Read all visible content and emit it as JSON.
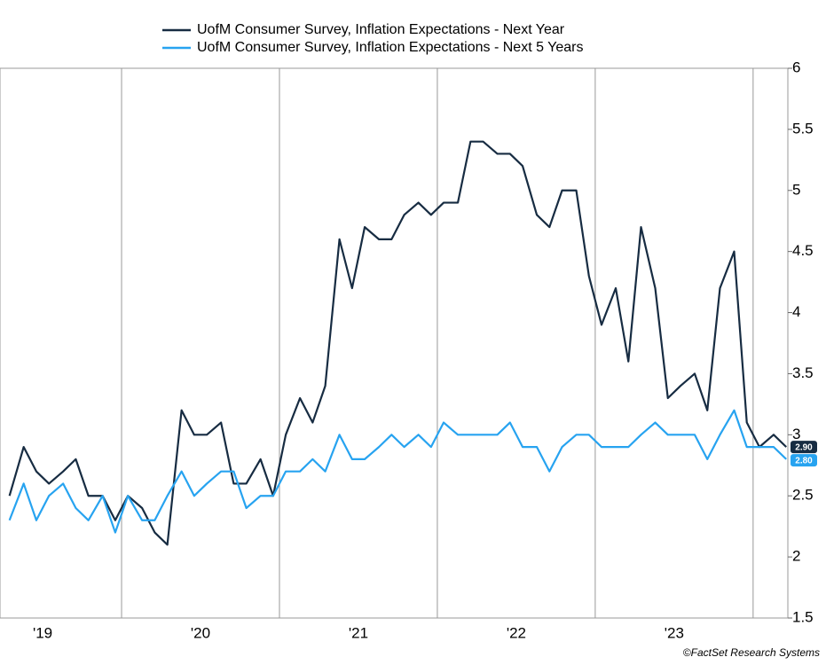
{
  "chart_data": {
    "type": "line",
    "x": [
      2019.29,
      2019.38,
      2019.46,
      2019.54,
      2019.63,
      2019.71,
      2019.79,
      2019.88,
      2019.96,
      2020.04,
      2020.13,
      2020.21,
      2020.29,
      2020.38,
      2020.46,
      2020.54,
      2020.63,
      2020.71,
      2020.79,
      2020.88,
      2020.96,
      2021.04,
      2021.13,
      2021.21,
      2021.29,
      2021.38,
      2021.46,
      2021.54,
      2021.63,
      2021.71,
      2021.79,
      2021.88,
      2021.96,
      2022.04,
      2022.13,
      2022.21,
      2022.29,
      2022.38,
      2022.46,
      2022.54,
      2022.63,
      2022.71,
      2022.79,
      2022.88,
      2022.96,
      2023.04,
      2023.13,
      2023.21,
      2023.29,
      2023.38,
      2023.46,
      2023.54,
      2023.63,
      2023.71,
      2023.79,
      2023.88,
      2023.96,
      2024.04,
      2024.13,
      2024.21
    ],
    "series": [
      {
        "name": "UofM Consumer Survey, Inflation Expectations - Next Year",
        "color": "#172c42",
        "last_label": "2.90",
        "values": [
          2.5,
          2.9,
          2.7,
          2.6,
          2.7,
          2.8,
          2.5,
          2.5,
          2.3,
          2.5,
          2.4,
          2.2,
          2.1,
          3.2,
          3.0,
          3.0,
          3.1,
          2.6,
          2.6,
          2.8,
          2.5,
          3.0,
          3.3,
          3.1,
          3.4,
          4.6,
          4.2,
          4.7,
          4.6,
          4.6,
          4.8,
          4.9,
          4.8,
          4.9,
          4.9,
          5.4,
          5.4,
          5.3,
          5.3,
          5.2,
          4.8,
          4.7,
          5.0,
          5.0,
          4.3,
          3.9,
          4.2,
          3.6,
          4.7,
          4.2,
          3.3,
          3.4,
          3.5,
          3.2,
          4.2,
          4.5,
          3.1,
          2.9,
          3.0,
          2.9
        ]
      },
      {
        "name": "UofM Consumer Survey, Inflation Expectations - Next 5 Years",
        "color": "#27a3f0",
        "last_label": "2.80",
        "values": [
          2.3,
          2.6,
          2.3,
          2.5,
          2.6,
          2.4,
          2.3,
          2.5,
          2.2,
          2.5,
          2.3,
          2.3,
          2.5,
          2.7,
          2.5,
          2.6,
          2.7,
          2.7,
          2.4,
          2.5,
          2.5,
          2.7,
          2.7,
          2.8,
          2.7,
          3.0,
          2.8,
          2.8,
          2.9,
          3.0,
          2.9,
          3.0,
          2.9,
          3.1,
          3.0,
          3.0,
          3.0,
          3.0,
          3.1,
          2.9,
          2.9,
          2.7,
          2.9,
          3.0,
          3.0,
          2.9,
          2.9,
          2.9,
          3.0,
          3.1,
          3.0,
          3.0,
          3.0,
          2.8,
          3.0,
          3.2,
          2.9,
          2.9,
          2.9,
          2.8
        ]
      }
    ],
    "xlim": [
      2019.23,
      2024.22
    ],
    "xticks": [
      {
        "value": 2019.5,
        "label": "'19"
      },
      {
        "value": 2020.5,
        "label": "'20"
      },
      {
        "value": 2021.5,
        "label": "'21"
      },
      {
        "value": 2022.5,
        "label": "'22"
      },
      {
        "value": 2023.5,
        "label": "'23"
      }
    ],
    "xgrid": [
      2020,
      2021,
      2022,
      2023,
      2024
    ],
    "ylim": [
      1.5,
      6
    ],
    "yticks": [
      1.5,
      2,
      2.5,
      3,
      3.5,
      4,
      4.5,
      5,
      5.5,
      6
    ],
    "source": "©FactSet Research Systems"
  }
}
